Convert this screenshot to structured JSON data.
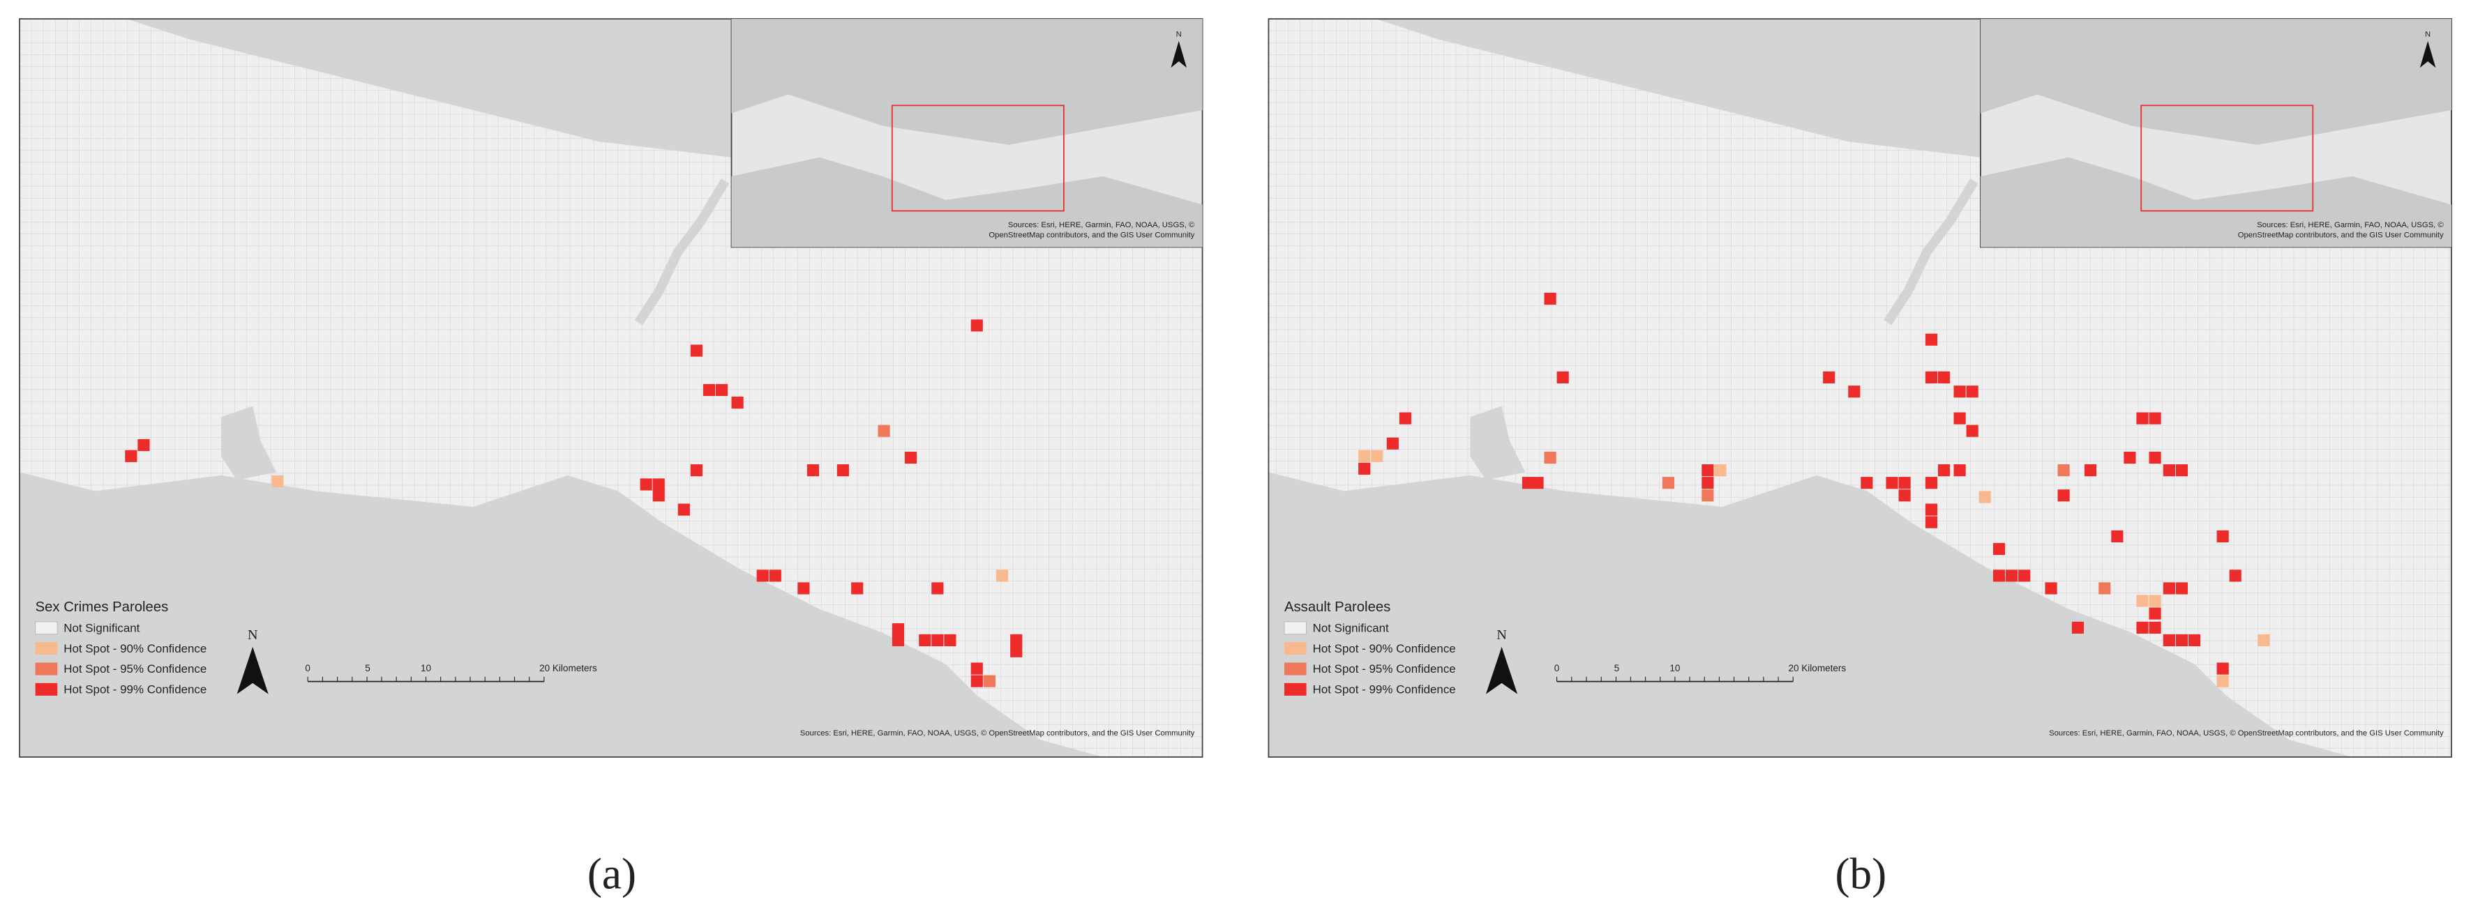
{
  "panels": [
    {
      "inset_credits": [
        "Sources: Esri, HERE, Garmin, FAO, NOAA, USGS, ©",
        "OpenStreetMap contributors, and the GIS User Community"
      ],
      "north": "N",
      "legend": {
        "title": "Sex Crimes Parolees",
        "items": [
          "Not Significant",
          "Hot Spot - 90% Confidence",
          "Hot Spot - 95% Confidence",
          "Hot Spot - 99% Confidence"
        ]
      },
      "scale": [
        "0",
        "5",
        "10",
        "20 Kilometers"
      ],
      "credits": "Sources: Esri, HERE, Garmin, FAO, NOAA, USGS, © OpenStreetMap contributors, and the GIS User Community",
      "caption": "(a)"
    },
    {
      "inset_credits": [
        "Sources: Esri, HERE, Garmin, FAO, NOAA, USGS, ©",
        "OpenStreetMap contributors, and the GIS User Community"
      ],
      "north": "N",
      "legend": {
        "title": "Assault Parolees",
        "items": [
          "Not Significant",
          "Hot Spot - 90% Confidence",
          "Hot Spot - 95% Confidence",
          "Hot Spot - 99% Confidence"
        ]
      },
      "scale": [
        "0",
        "5",
        "10",
        "20 Kilometers"
      ],
      "credits": "Sources: Esri, HERE, Garmin, FAO, NOAA, USGS, © OpenStreetMap contributors, and the GIS User Community",
      "caption": "(b)"
    }
  ]
}
